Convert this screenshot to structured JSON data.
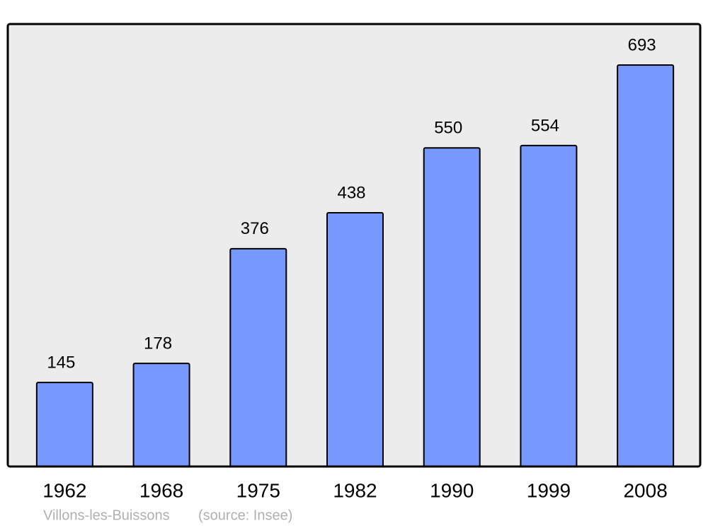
{
  "chart_data": {
    "type": "bar",
    "title": "Villons-les-Buissons",
    "source": "(source: Insee)",
    "categories": [
      "1962",
      "1968",
      "1975",
      "1982",
      "1990",
      "1999",
      "2008"
    ],
    "values": [
      145,
      178,
      376,
      438,
      550,
      554,
      693
    ],
    "color": "#7799ff"
  }
}
